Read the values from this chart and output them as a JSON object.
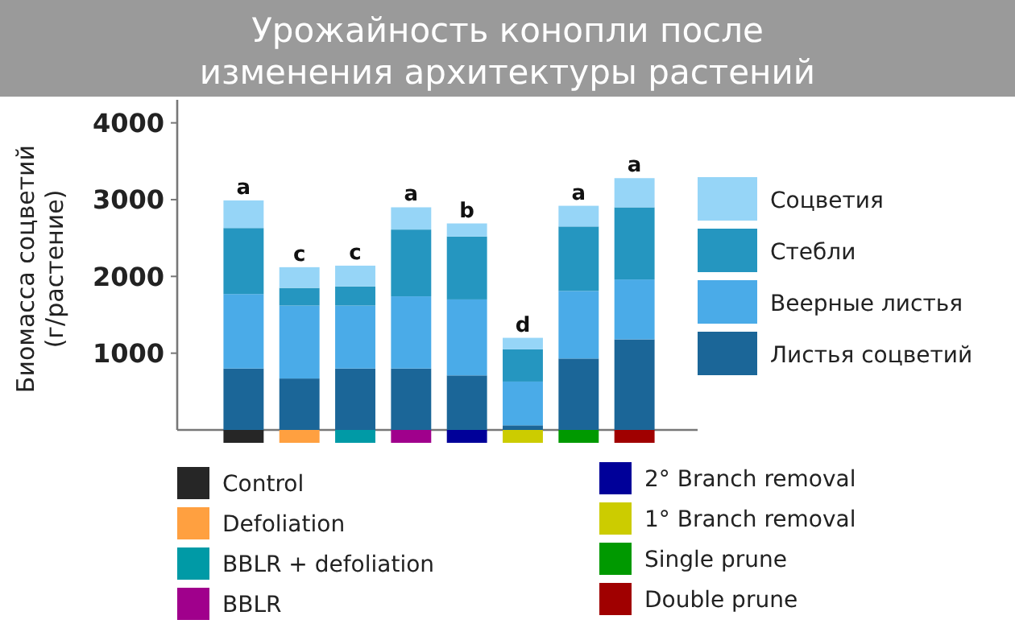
{
  "chart_data": {
    "type": "bar",
    "stacked": true,
    "title": "Урожайность конопли после\nизменения архитектуры растений",
    "ylabel": "Биомасса соцветий\n(г/растение)",
    "categories": [
      null,
      null,
      null,
      null,
      null,
      null,
      null,
      null
    ],
    "colors": [
      "#262626",
      "#ffa040",
      "#009aa6",
      "#a0008c",
      "#000099",
      "#cccc00",
      "#009900",
      "#a00000"
    ],
    "series": [
      {
        "name": "Листья соцветий",
        "color": "#1b6698",
        "values": [
          800,
          670,
          800,
          800,
          710,
          60,
          930,
          1180
        ]
      },
      {
        "name": "Веерные листья",
        "color": "#4aabe8",
        "values": [
          970,
          950,
          820,
          940,
          990,
          570,
          880,
          780
        ]
      },
      {
        "name": "Стебли",
        "color": "#2596c0",
        "values": [
          860,
          230,
          250,
          870,
          820,
          420,
          840,
          940
        ]
      },
      {
        "name": "Соцветия",
        "color": "#96d5f7",
        "values": [
          360,
          270,
          270,
          290,
          170,
          150,
          270,
          380
        ]
      }
    ],
    "ylim": [
      0,
      4300
    ],
    "yticks": [
      1000,
      2000,
      3000,
      4000
    ],
    "legend": "right",
    "annotations": [
      "a",
      "c",
      "c",
      "a",
      "b",
      "d",
      "a",
      "a",
      "Control",
      "Defoliation",
      "BBLR + defoliation",
      "BBLR",
      "2° Branch removal",
      "1° Branch removal",
      "Single prune",
      "Double prune"
    ]
  }
}
